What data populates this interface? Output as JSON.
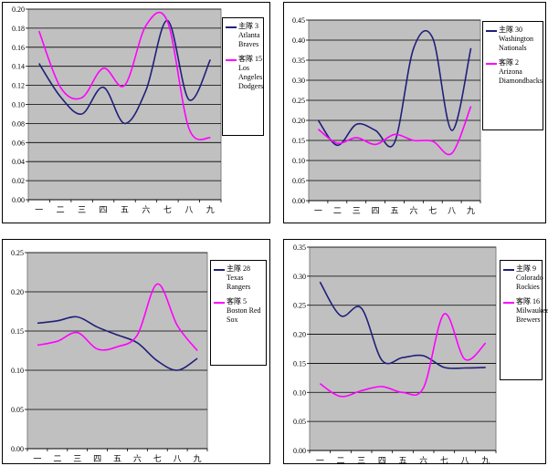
{
  "chart_data": [
    {
      "type": "line",
      "categories": [
        "一",
        "二",
        "三",
        "四",
        "五",
        "六",
        "七",
        "八",
        "九"
      ],
      "yticks": [
        "0.00",
        "0.02",
        "0.04",
        "0.06",
        "0.08",
        "0.10",
        "0.12",
        "0.14",
        "0.16",
        "0.18",
        "0.20"
      ],
      "ylim": [
        0,
        0.2
      ],
      "grid": true,
      "legend_position": "right",
      "series": [
        {
          "name": "主隊 3 Atlanta Braves",
          "color": "#1f1f7a",
          "values": [
            0.143,
            0.108,
            0.09,
            0.118,
            0.08,
            0.115,
            0.188,
            0.105,
            0.147
          ]
        },
        {
          "name": "客隊 15 Los Angeles Dodgers",
          "color": "#ff00ff",
          "values": [
            0.177,
            0.118,
            0.107,
            0.138,
            0.12,
            0.183,
            0.187,
            0.075,
            0.065
          ]
        }
      ]
    },
    {
      "type": "line",
      "categories": [
        "一",
        "二",
        "三",
        "四",
        "五",
        "六",
        "七",
        "八",
        "九"
      ],
      "yticks": [
        "0.00",
        "0.05",
        "0.10",
        "0.15",
        "0.20",
        "0.25",
        "0.30",
        "0.35",
        "0.40",
        "0.45"
      ],
      "ylim": [
        0,
        0.45
      ],
      "grid": true,
      "legend_position": "right",
      "series": [
        {
          "name": "主隊 30 Washington Nationals",
          "color": "#1f1f7a",
          "values": [
            0.2,
            0.138,
            0.19,
            0.175,
            0.145,
            0.38,
            0.405,
            0.175,
            0.38
          ]
        },
        {
          "name": "客隊 2 Arizona Diamondbacks",
          "color": "#ff00ff",
          "values": [
            0.178,
            0.143,
            0.157,
            0.14,
            0.165,
            0.15,
            0.148,
            0.118,
            0.235
          ]
        }
      ]
    },
    {
      "type": "line",
      "categories": [
        "一",
        "二",
        "三",
        "四",
        "五",
        "六",
        "七",
        "八",
        "九"
      ],
      "yticks": [
        "0.00",
        "0.05",
        "0.10",
        "0.15",
        "0.20",
        "0.25"
      ],
      "ylim": [
        0,
        0.25
      ],
      "grid": true,
      "legend_position": "right",
      "series": [
        {
          "name": "主隊 28 Texas Rangers",
          "color": "#1f1f7a",
          "values": [
            0.16,
            0.163,
            0.168,
            0.155,
            0.145,
            0.135,
            0.112,
            0.1,
            0.115
          ]
        },
        {
          "name": "客隊 5 Boston Red Sox",
          "color": "#ff00ff",
          "values": [
            0.132,
            0.137,
            0.148,
            0.127,
            0.13,
            0.145,
            0.21,
            0.157,
            0.125
          ]
        }
      ]
    },
    {
      "type": "line",
      "categories": [
        "一",
        "二",
        "三",
        "四",
        "五",
        "六",
        "七",
        "八",
        "九"
      ],
      "yticks": [
        "0.00",
        "0.05",
        "0.10",
        "0.15",
        "0.20",
        "0.25",
        "0.30",
        "0.35"
      ],
      "ylim": [
        0,
        0.35
      ],
      "grid": true,
      "legend_position": "right",
      "series": [
        {
          "name": "主隊 9 Colorado Rockies",
          "color": "#1f1f7a",
          "values": [
            0.29,
            0.232,
            0.245,
            0.155,
            0.16,
            0.163,
            0.143,
            0.142,
            0.143
          ]
        },
        {
          "name": "客隊 16 Milwaukee Brewers",
          "color": "#ff00ff",
          "values": [
            0.115,
            0.093,
            0.103,
            0.11,
            0.1,
            0.108,
            0.235,
            0.157,
            0.185
          ]
        }
      ]
    }
  ]
}
